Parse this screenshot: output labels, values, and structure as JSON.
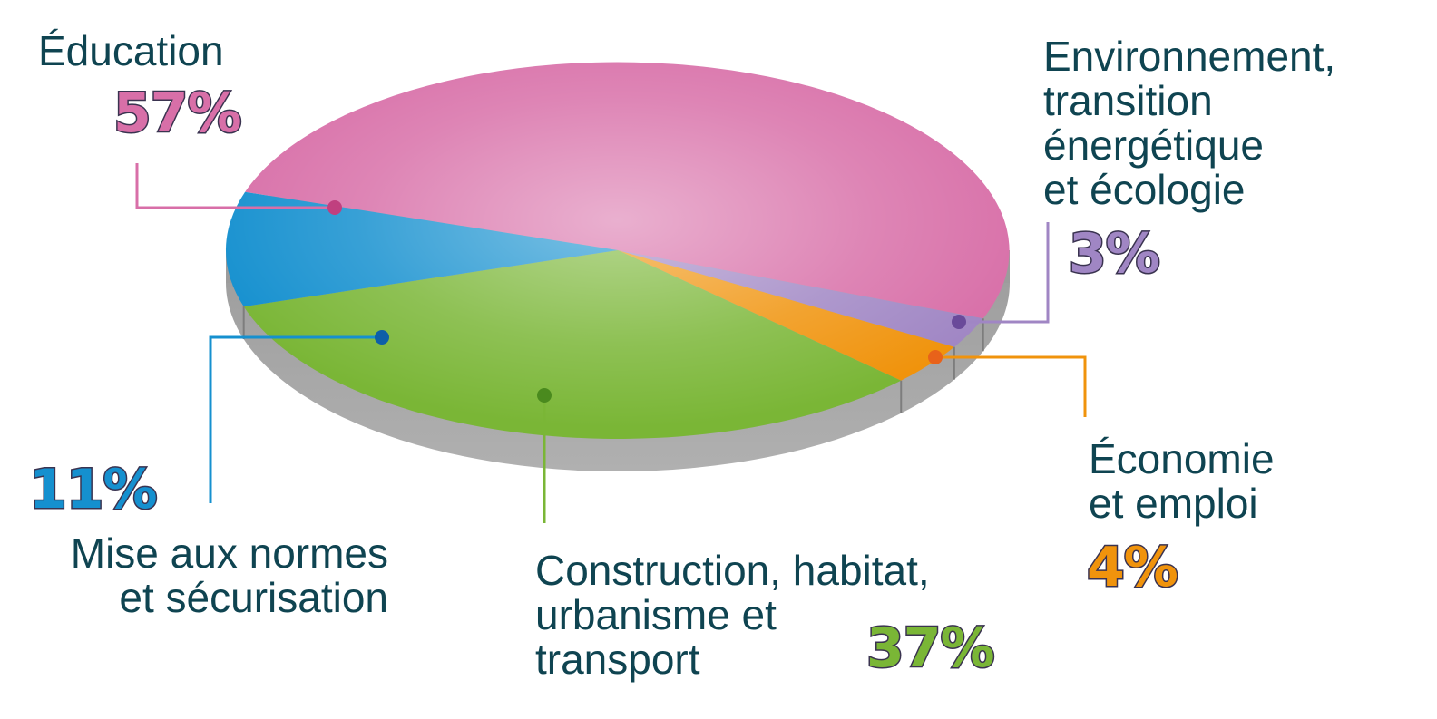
{
  "colors": {
    "text": "#0f4451",
    "base": "#9a9a9a",
    "outline": "#3a3350"
  },
  "chart_data": {
    "type": "pie",
    "style": "3d",
    "title": "",
    "unit": "%",
    "slices": [
      {
        "name": "Éducation",
        "label": "Éducation",
        "value": 57,
        "value_label": "57%",
        "color": "#d86fa8",
        "marker_color": "#c0407f"
      },
      {
        "name": "Environnement, transition énergétique et écologie",
        "label": "Environnement,\ntransition\nénergétique\net écologie",
        "value": 3,
        "value_label": "3%",
        "color": "#a086c4",
        "marker_color": "#6a4a9a"
      },
      {
        "name": "Économie et emploi",
        "label": "Économie\net emploi",
        "value": 4,
        "value_label": "4%",
        "color": "#f0930c",
        "marker_color": "#e8621a"
      },
      {
        "name": "Construction, habitat, urbanisme et transport",
        "label": "Construction, habitat,\nurbanisme et\ntransport",
        "value": 37,
        "value_label": "37%",
        "color": "#7ab636",
        "marker_color": "#4a8a1e"
      },
      {
        "name": "Mise aux normes et sécurisation",
        "label": "Mise aux normes\net sécurisation",
        "value": 11,
        "value_label": "11%",
        "color": "#1590cf",
        "marker_color": "#0d5fa8"
      }
    ]
  }
}
